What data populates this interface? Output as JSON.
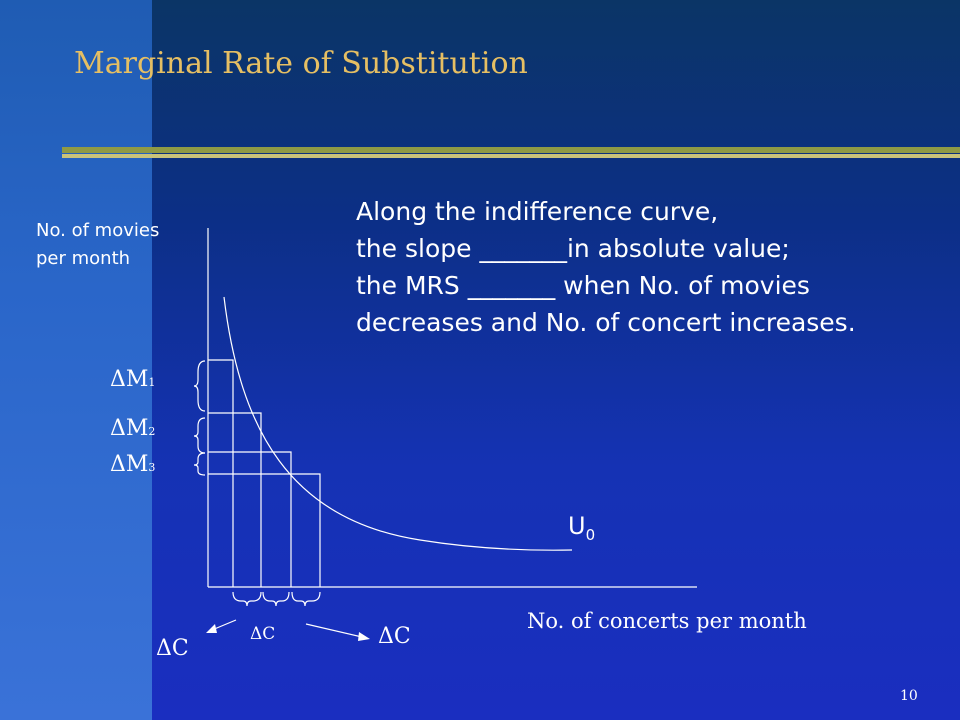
{
  "slide": {
    "title": "Marginal Rate of Substitution",
    "page_number": "10",
    "colors": {
      "title": "#e6bf63",
      "rule": "#8f9a45",
      "background": "#1a2fb6"
    }
  },
  "text_block": {
    "lines": [
      "Along the indifference curve,",
      "the slope _______in absolute value;",
      "the MRS  _______ when No. of movies",
      "decreases and No. of concert increases."
    ]
  },
  "diagram": {
    "y_axis_label": "No. of movies per month",
    "x_axis_label": "No. of concerts per month",
    "curve_label": {
      "text": "U",
      "subscript": "0"
    },
    "delta_m_labels": [
      {
        "text": "ΔM",
        "subscript": "1"
      },
      {
        "text": "ΔM",
        "subscript": "2"
      },
      {
        "text": "ΔM",
        "subscript": "3"
      }
    ],
    "delta_c_labels": [
      "ΔC",
      "ΔC",
      "ΔC"
    ]
  }
}
